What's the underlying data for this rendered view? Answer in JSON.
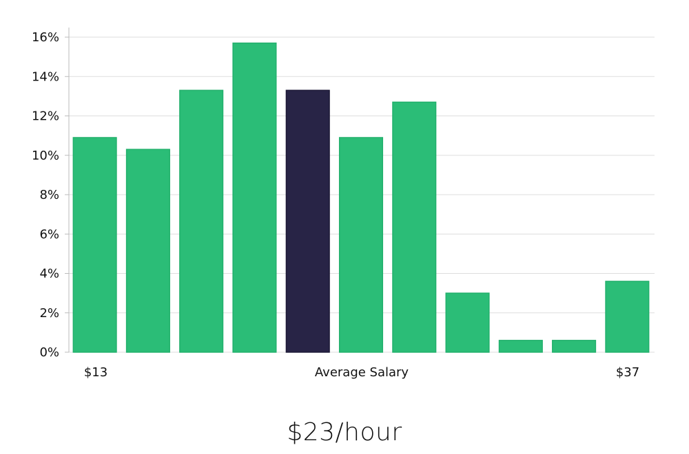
{
  "chart_data": {
    "type": "bar",
    "values": [
      10.9,
      10.3,
      13.3,
      15.7,
      13.3,
      10.9,
      12.7,
      3.0,
      0.6,
      0.6,
      3.6
    ],
    "highlight_index": 4,
    "ylim": [
      0,
      16
    ],
    "y_ticks": [
      {
        "value": 0,
        "label": "0%"
      },
      {
        "value": 2,
        "label": "2%"
      },
      {
        "value": 4,
        "label": "4%"
      },
      {
        "value": 6,
        "label": "6%"
      },
      {
        "value": 8,
        "label": "8%"
      },
      {
        "value": 10,
        "label": "10%"
      },
      {
        "value": 12,
        "label": "12%"
      },
      {
        "value": 14,
        "label": "14%"
      },
      {
        "value": 16,
        "label": "16%"
      }
    ],
    "x_min_label": "$13",
    "x_max_label": "$37",
    "xlabel": "Average Salary",
    "grid": true,
    "colors": {
      "bar": "#2bbd77",
      "bar_edge": "#22b06c",
      "highlight": "#282446",
      "grid": "#dddddd",
      "axis": "#bbbbbb"
    }
  },
  "summary": {
    "average_value": "$23/hour"
  }
}
